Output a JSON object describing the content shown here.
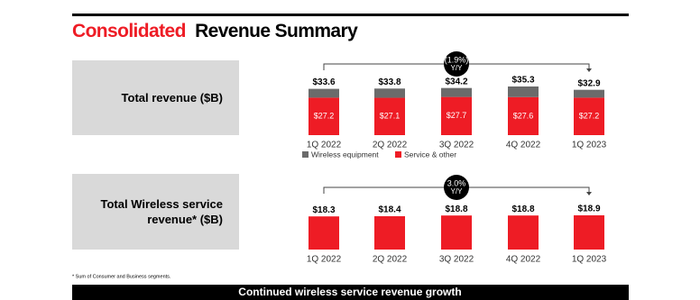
{
  "header": {
    "title_highlight": "Consolidated",
    "title_rest": "Revenue Summary"
  },
  "chart_data": [
    {
      "type": "stacked_bar",
      "title": "Total revenue ($B)",
      "categories": [
        "1Q 2022",
        "2Q 2022",
        "3Q 2022",
        "4Q 2022",
        "1Q 2023"
      ],
      "series": [
        {
          "name": "Wireless equipment",
          "color": "#6b6b6b",
          "values": [
            6.4,
            6.7,
            6.5,
            7.7,
            5.7
          ]
        },
        {
          "name": "Service & other",
          "color": "#ee1c25",
          "values": [
            27.2,
            27.1,
            27.7,
            27.6,
            27.2
          ],
          "value_labels": [
            "$27.2",
            "$27.1",
            "$27.7",
            "$27.6",
            "$27.2"
          ]
        }
      ],
      "totals": [
        33.6,
        33.8,
        34.2,
        35.3,
        32.9
      ],
      "total_labels": [
        "$33.6",
        "$33.8",
        "$34.2",
        "$35.3",
        "$32.9"
      ],
      "annotation": {
        "change": "(1.9%)",
        "period": "Y/Y"
      },
      "legend": true
    },
    {
      "type": "bar",
      "title": "Total Wireless service revenue* ($B)",
      "categories": [
        "1Q 2022",
        "2Q 2022",
        "3Q 2022",
        "4Q 2022",
        "1Q 2023"
      ],
      "values": [
        18.3,
        18.4,
        18.8,
        18.8,
        18.9
      ],
      "value_labels": [
        "$18.3",
        "$18.4",
        "$18.8",
        "$18.8",
        "$18.9"
      ],
      "color": "#ee1c25",
      "annotation": {
        "change": "3.0%",
        "period": "Y/Y"
      }
    }
  ],
  "footnote": "* Sum of Consumer and Business segments.",
  "banner": "Continued wireless service revenue growth"
}
